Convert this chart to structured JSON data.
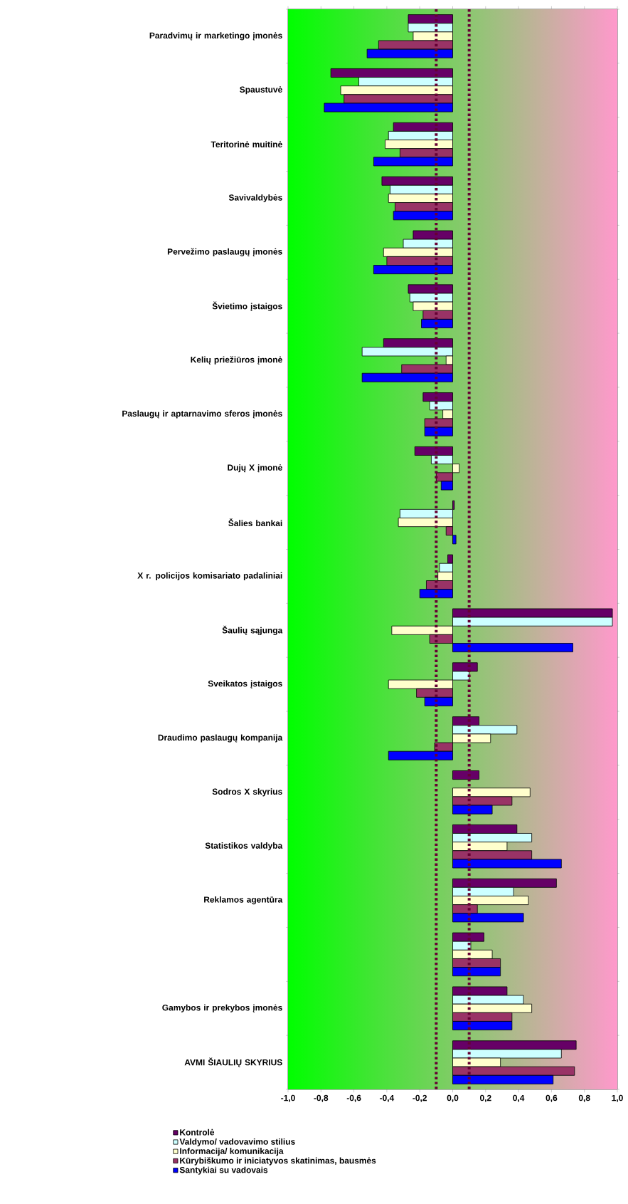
{
  "chart_data": {
    "type": "bar",
    "orientation": "horizontal",
    "categories": [
      "Paradvimų ir marketingo įmonės",
      "Spaustuvė",
      "Teritorinė muitinė",
      "Savivaldybės",
      "Pervežimo paslaugų įmonės",
      "Švietimo įstaigos",
      "Kelių priežiūros įmonė",
      "Paslaugų ir aptarnavimo sferos įmonės",
      "Dujų X įmonė",
      "Šalies bankai",
      "X r. policijos komisariato padaliniai",
      "Šaulių sąjunga",
      "Sveikatos įstaigos",
      "Draudimo paslaugų kompanija",
      "Sodros X skyrius",
      "Statistikos valdyba",
      "Reklamos agentūra",
      null,
      "Gamybos ir prekybos įmonės",
      "AVMI ŠIAULIŲ SKYRIUS"
    ],
    "series": [
      {
        "name": "Kontrolė",
        "color": "#660066",
        "values": [
          -0.27,
          -0.74,
          -0.36,
          -0.43,
          -0.24,
          -0.27,
          -0.42,
          -0.18,
          -0.23,
          0.01,
          -0.03,
          0.97,
          0.15,
          0.16,
          0.16,
          0.39,
          0.63,
          0.19,
          0.33,
          0.75
        ]
      },
      {
        "name": "Valdymo/ vadovavimo stilius",
        "color": "#ccffff",
        "values": [
          -0.27,
          -0.57,
          -0.39,
          -0.38,
          -0.3,
          -0.26,
          -0.55,
          -0.14,
          -0.13,
          -0.32,
          -0.08,
          0.97,
          0.1,
          0.39,
          null,
          0.48,
          0.37,
          0.11,
          0.43,
          0.66
        ]
      },
      {
        "name": "Informacija/ komunikacija",
        "color": "#ffffcc",
        "values": [
          -0.24,
          -0.68,
          -0.41,
          -0.39,
          -0.42,
          -0.24,
          -0.04,
          -0.06,
          0.04,
          -0.33,
          -0.09,
          -0.37,
          -0.39,
          0.23,
          0.47,
          0.33,
          0.46,
          0.24,
          0.48,
          0.29
        ]
      },
      {
        "name": "Kūrybiškumo ir iniciatyvos skatinimas, bausmės",
        "color": "#993366",
        "values": [
          -0.45,
          -0.66,
          -0.32,
          -0.35,
          -0.4,
          -0.18,
          -0.31,
          -0.17,
          -0.1,
          -0.04,
          -0.16,
          -0.14,
          -0.22,
          -0.11,
          0.36,
          0.48,
          0.15,
          0.29,
          0.36,
          0.74
        ]
      },
      {
        "name": "Santykiai su vadovais",
        "color": "#0000ff",
        "values": [
          -0.52,
          -0.78,
          -0.48,
          -0.36,
          -0.48,
          -0.19,
          -0.55,
          -0.17,
          -0.07,
          0.02,
          -0.2,
          0.73,
          -0.17,
          -0.39,
          0.24,
          0.66,
          0.43,
          0.29,
          0.36,
          0.61
        ]
      }
    ],
    "xlim": [
      -1,
      1
    ],
    "xticks": [
      {
        "value": -1,
        "label": "-1,0"
      },
      {
        "value": -0.8,
        "label": "-0,8"
      },
      {
        "value": -0.6,
        "label": "-0,6"
      },
      {
        "value": -0.4,
        "label": "-0,4"
      },
      {
        "value": -0.2,
        "label": "-0,2"
      },
      {
        "value": 0,
        "label": "0,0"
      },
      {
        "value": 0.2,
        "label": "0,2"
      },
      {
        "value": 0.4,
        "label": "0,4"
      },
      {
        "value": 0.6,
        "label": "0,6"
      },
      {
        "value": 0.8,
        "label": "0,8"
      },
      {
        "value": 1,
        "label": "1,0"
      }
    ],
    "ref_lines": [
      {
        "axis": "x",
        "value": -0.1,
        "color": "#660033",
        "line_style": "dotted"
      },
      {
        "axis": "x",
        "value": 0.1,
        "color": "#660033",
        "line_style": "dotted"
      }
    ],
    "grid": true,
    "legend": "bottom"
  }
}
